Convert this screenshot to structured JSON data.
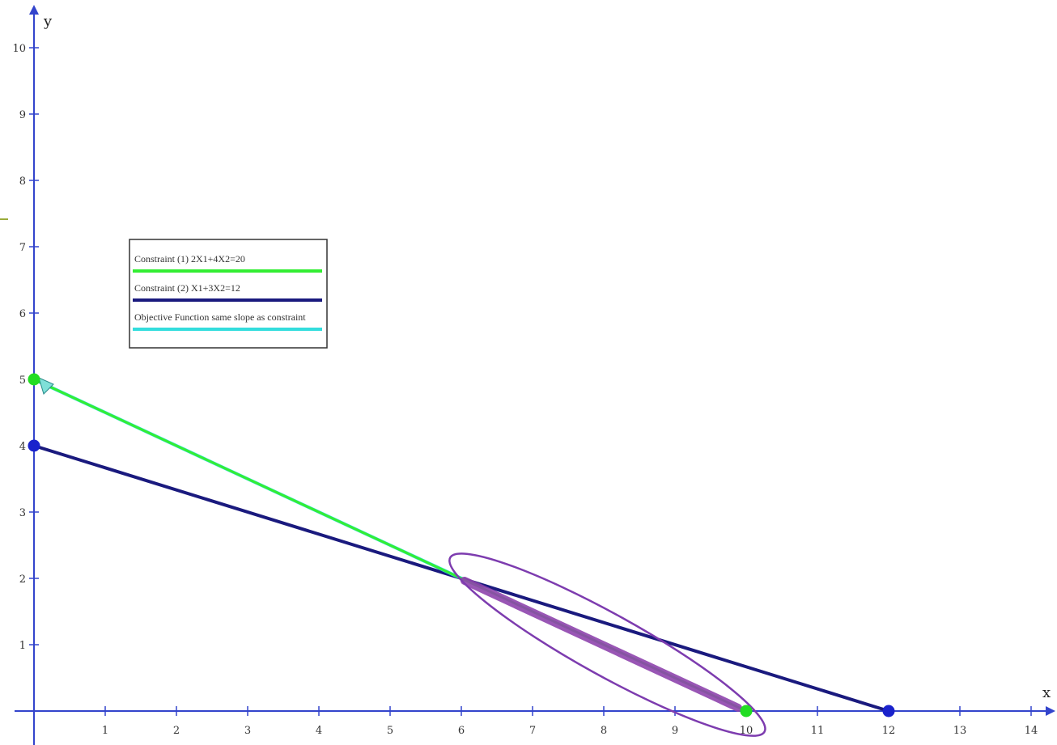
{
  "chart_data": {
    "type": "line",
    "xlabel": "x",
    "ylabel": "y",
    "xlim": [
      0,
      14.3
    ],
    "ylim": [
      0,
      10.5
    ],
    "x_ticks": [
      1,
      2,
      3,
      4,
      5,
      6,
      7,
      8,
      9,
      10,
      11,
      12,
      13,
      14
    ],
    "y_ticks": [
      1,
      2,
      3,
      4,
      5,
      6,
      7,
      8,
      9,
      10
    ],
    "legend": {
      "placement": "upper-left",
      "entries": [
        {
          "label": "Constraint (1) 2X1+4X2=20",
          "color": "#33ee33"
        },
        {
          "label": "Constraint (2) X1+3X2=12",
          "color": "#1a1a7e"
        },
        {
          "label": "Objective Function same slope as constraint",
          "color": "#33dddd"
        }
      ]
    },
    "series": [
      {
        "name": "Constraint (1) 2X1+4X2=20",
        "color": "#33ee33",
        "x": [
          0,
          10
        ],
        "y": [
          5,
          0
        ],
        "endpoints": true
      },
      {
        "name": "Constraint (2) X1+3X2=12",
        "color": "#1a1a7e",
        "x": [
          0,
          12
        ],
        "y": [
          4,
          0
        ],
        "endpoints": true
      },
      {
        "name": "Objective Function same slope as constraint",
        "color": "#33dddd",
        "x": [
          0,
          6
        ],
        "y": [
          5,
          2
        ]
      }
    ],
    "highlight": {
      "segment": {
        "x": [
          6,
          10
        ],
        "y": [
          2,
          0
        ],
        "color": "#8e44ad"
      },
      "ellipse": {
        "center": [
          8.05,
          1.0
        ],
        "color": "#7d3caf"
      }
    },
    "grid": false
  }
}
